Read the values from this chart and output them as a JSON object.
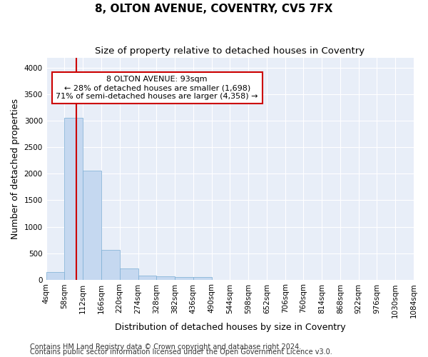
{
  "title": "8, OLTON AVENUE, COVENTRY, CV5 7FX",
  "subtitle": "Size of property relative to detached houses in Coventry",
  "xlabel": "Distribution of detached houses by size in Coventry",
  "ylabel": "Number of detached properties",
  "footnote1": "Contains HM Land Registry data © Crown copyright and database right 2024.",
  "footnote2": "Contains public sector information licensed under the Open Government Licence v3.0.",
  "annotation_line1": "8 OLTON AVENUE: 93sqm",
  "annotation_line2": "← 28% of detached houses are smaller (1,698)",
  "annotation_line3": "71% of semi-detached houses are larger (4,358) →",
  "bar_color": "#c5d8f0",
  "bar_edge_color": "#7aadd4",
  "red_line_color": "#cc0000",
  "red_line_x": 93,
  "bin_edges": [
    4,
    58,
    112,
    166,
    220,
    274,
    328,
    382,
    436,
    490,
    544,
    598,
    652,
    706,
    760,
    814,
    868,
    922,
    976,
    1030,
    1084
  ],
  "bin_labels": [
    "4sqm",
    "58sqm",
    "112sqm",
    "166sqm",
    "220sqm",
    "274sqm",
    "328sqm",
    "382sqm",
    "436sqm",
    "490sqm",
    "544sqm",
    "598sqm",
    "652sqm",
    "706sqm",
    "760sqm",
    "814sqm",
    "868sqm",
    "922sqm",
    "976sqm",
    "1030sqm",
    "1084sqm"
  ],
  "bar_heights": [
    140,
    3060,
    2060,
    560,
    210,
    80,
    55,
    45,
    45,
    0,
    0,
    0,
    0,
    0,
    0,
    0,
    0,
    0,
    0,
    0
  ],
  "ylim": [
    0,
    4200
  ],
  "yticks": [
    0,
    500,
    1000,
    1500,
    2000,
    2500,
    3000,
    3500,
    4000
  ],
  "fig_bg_color": "#ffffff",
  "plot_bg_color": "#e8eef8",
  "grid_color": "#ffffff",
  "annotation_box_facecolor": "#ffffff",
  "annotation_box_edgecolor": "#cc0000",
  "title_fontsize": 11,
  "subtitle_fontsize": 9.5,
  "axis_label_fontsize": 9,
  "tick_fontsize": 7.5,
  "annotation_fontsize": 8,
  "footnote_fontsize": 7
}
